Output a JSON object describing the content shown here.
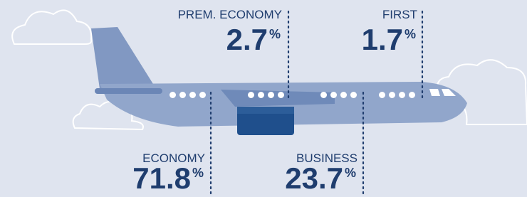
{
  "unit": "%",
  "segments": [
    {
      "name": "PREM. ECONOMY",
      "value": 2.7
    },
    {
      "name": "FIRST",
      "value": 1.7
    },
    {
      "name": "ECONOMY",
      "value": 71.8
    },
    {
      "name": "BUSINESS",
      "value": 23.7
    }
  ]
}
